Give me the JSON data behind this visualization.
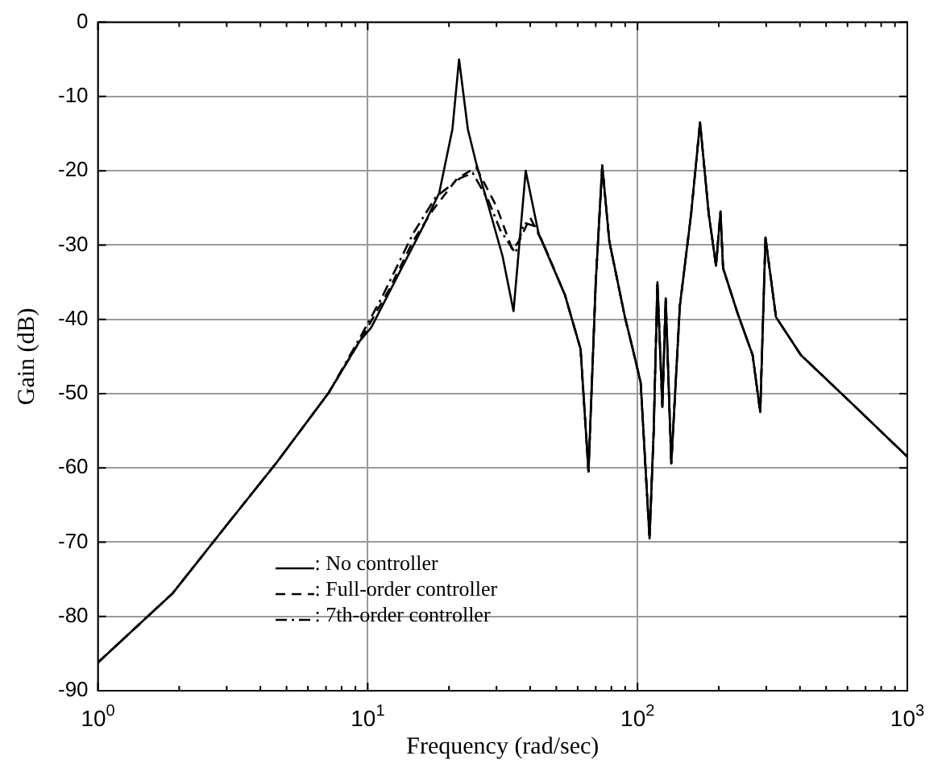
{
  "chart_data": {
    "type": "line",
    "xlabel": "Frequency (rad/sec)",
    "ylabel": "Gain (dB)",
    "log": "x",
    "xlim": [
      1,
      1000
    ],
    "ylim": [
      -90,
      0
    ],
    "xticks": [
      {
        "value": 1,
        "label": "10$^{0}$"
      },
      {
        "value": 2,
        "label": null
      },
      {
        "value": 3,
        "label": null
      },
      {
        "value": 4,
        "label": null
      },
      {
        "value": 5,
        "label": null
      },
      {
        "value": 6,
        "label": null
      },
      {
        "value": 7,
        "label": null
      },
      {
        "value": 8,
        "label": null
      },
      {
        "value": 9,
        "label": null
      },
      {
        "value": 10,
        "label": "10$^{1}$"
      },
      {
        "value": 20,
        "label": null
      },
      {
        "value": 30,
        "label": null
      },
      {
        "value": 40,
        "label": null
      },
      {
        "value": 50,
        "label": null
      },
      {
        "value": 60,
        "label": null
      },
      {
        "value": 70,
        "label": null
      },
      {
        "value": 80,
        "label": null
      },
      {
        "value": 90,
        "label": null
      },
      {
        "value": 100,
        "label": "10$^{2}$"
      },
      {
        "value": 200,
        "label": null
      },
      {
        "value": 300,
        "label": null
      },
      {
        "value": 400,
        "label": null
      },
      {
        "value": 500,
        "label": null
      },
      {
        "value": 600,
        "label": null
      },
      {
        "value": 700,
        "label": null
      },
      {
        "value": 800,
        "label": null
      },
      {
        "value": 900,
        "label": null
      },
      {
        "value": 1000,
        "label": "10$^{3}$"
      }
    ],
    "yticks": [
      -90,
      -80,
      -70,
      -60,
      -50,
      -40,
      -30,
      -20,
      -10,
      0
    ],
    "grid": true,
    "legend": "bottom left",
    "marker": "none",
    "series": [
      {
        "name": ": No controller",
        "color": "#000000",
        "line_style": "solid",
        "x": [
          1,
          1.89,
          2.94,
          4.59,
          7.16,
          9.35,
          10.3,
          13.4,
          16.1,
          18.4,
          20.6,
          21.8,
          23.5,
          25.2,
          28.8,
          31.6,
          34.7,
          38.5,
          43,
          53.8,
          61.5,
          65.8,
          70,
          74,
          78.6,
          89.8,
          96,
          102.7,
          110.8,
          114.8,
          118.5,
          123.6,
          127.2,
          133.4,
          143.5,
          158,
          170.5,
          183.6,
          195.4,
          203,
          207.5,
          234,
          267,
          285,
          298,
          326,
          403,
          626,
          1000
        ],
        "values": [
          -86.2,
          -76.9,
          -68.1,
          -59.3,
          -49.9,
          -42.9,
          -41.1,
          -33,
          -27.4,
          -23,
          -14.4,
          -5,
          -14.4,
          -18.9,
          -26.3,
          -31.5,
          -38.9,
          -20,
          -28.5,
          -36.7,
          -44,
          -60.5,
          -35,
          -19.3,
          -29.5,
          -39.7,
          -44,
          -48.5,
          -69.5,
          -55,
          -35,
          -51.8,
          -37.2,
          -59.4,
          -38.2,
          -25.8,
          -13.5,
          -25.8,
          -32.8,
          -25.5,
          -33.1,
          -39,
          -44.8,
          -52.5,
          -29,
          -39.7,
          -44.8,
          -51.4,
          -58.5
        ]
      },
      {
        "name": ": Full-order controller",
        "color": "#000000",
        "line_style": "dashed",
        "x": [
          1,
          1.89,
          2.94,
          4.59,
          7.16,
          9.35,
          12,
          14.7,
          17.5,
          21.4,
          25.2,
          30,
          34.4,
          36.6,
          40,
          45,
          53.8,
          61.5,
          65.8,
          70,
          74,
          78.6,
          89.8,
          96,
          102.7,
          110.8,
          114.8,
          118.5,
          123.6,
          127.2,
          133.4,
          143.5,
          158,
          170.5,
          183.6,
          195.4,
          203,
          207.5,
          234,
          267,
          285,
          298,
          326,
          403,
          626,
          1000
        ],
        "values": [
          -86.2,
          -76.9,
          -68.1,
          -59.3,
          -49.9,
          -42.9,
          -36,
          -29.5,
          -25.2,
          -21.1,
          -19.5,
          -24.8,
          -30.7,
          -29.3,
          -26.3,
          -30,
          -36.7,
          -44,
          -60.5,
          -35,
          -19.3,
          -29.5,
          -39.7,
          -44,
          -48.5,
          -69.5,
          -55,
          -35,
          -51.8,
          -37.2,
          -59.4,
          -38.2,
          -25.8,
          -13.5,
          -25.8,
          -32.8,
          -25.5,
          -33.1,
          -39,
          -44.8,
          -52.5,
          -29,
          -39.7,
          -44.8,
          -51.4,
          -58.5
        ]
      },
      {
        "name": ": 7th-order controller",
        "color": "#000000",
        "line_style": "dashdot",
        "x": [
          1,
          1.89,
          2.94,
          4.59,
          7.16,
          9.35,
          11.3,
          14.7,
          17.9,
          22,
          24.5,
          28,
          31,
          35.3,
          38,
          42,
          53.8,
          61.5,
          65.8,
          70,
          74,
          78.6,
          89.8,
          96,
          102.7,
          110.8,
          114.8,
          118.5,
          123.6,
          127.2,
          133.4,
          143.5,
          158,
          170.5,
          183.6,
          195.4,
          203,
          207.5,
          234,
          267,
          285,
          298,
          326,
          403,
          626,
          1000
        ],
        "values": [
          -86.2,
          -76.9,
          -68.1,
          -59.3,
          -49.9,
          -42.5,
          -37,
          -28.5,
          -23.5,
          -21,
          -20.3,
          -24,
          -28,
          -31.1,
          -27,
          -27.5,
          -36.7,
          -44,
          -60.5,
          -35,
          -19.3,
          -29.5,
          -39.7,
          -44,
          -48.5,
          -69.5,
          -55,
          -35,
          -51.8,
          -37.2,
          -59.4,
          -38.2,
          -25.8,
          -13.5,
          -25.8,
          -32.8,
          -25.5,
          -33.1,
          -39,
          -44.8,
          -52.5,
          -29,
          -39.7,
          -44.8,
          -51.4,
          -58.5
        ]
      }
    ]
  }
}
